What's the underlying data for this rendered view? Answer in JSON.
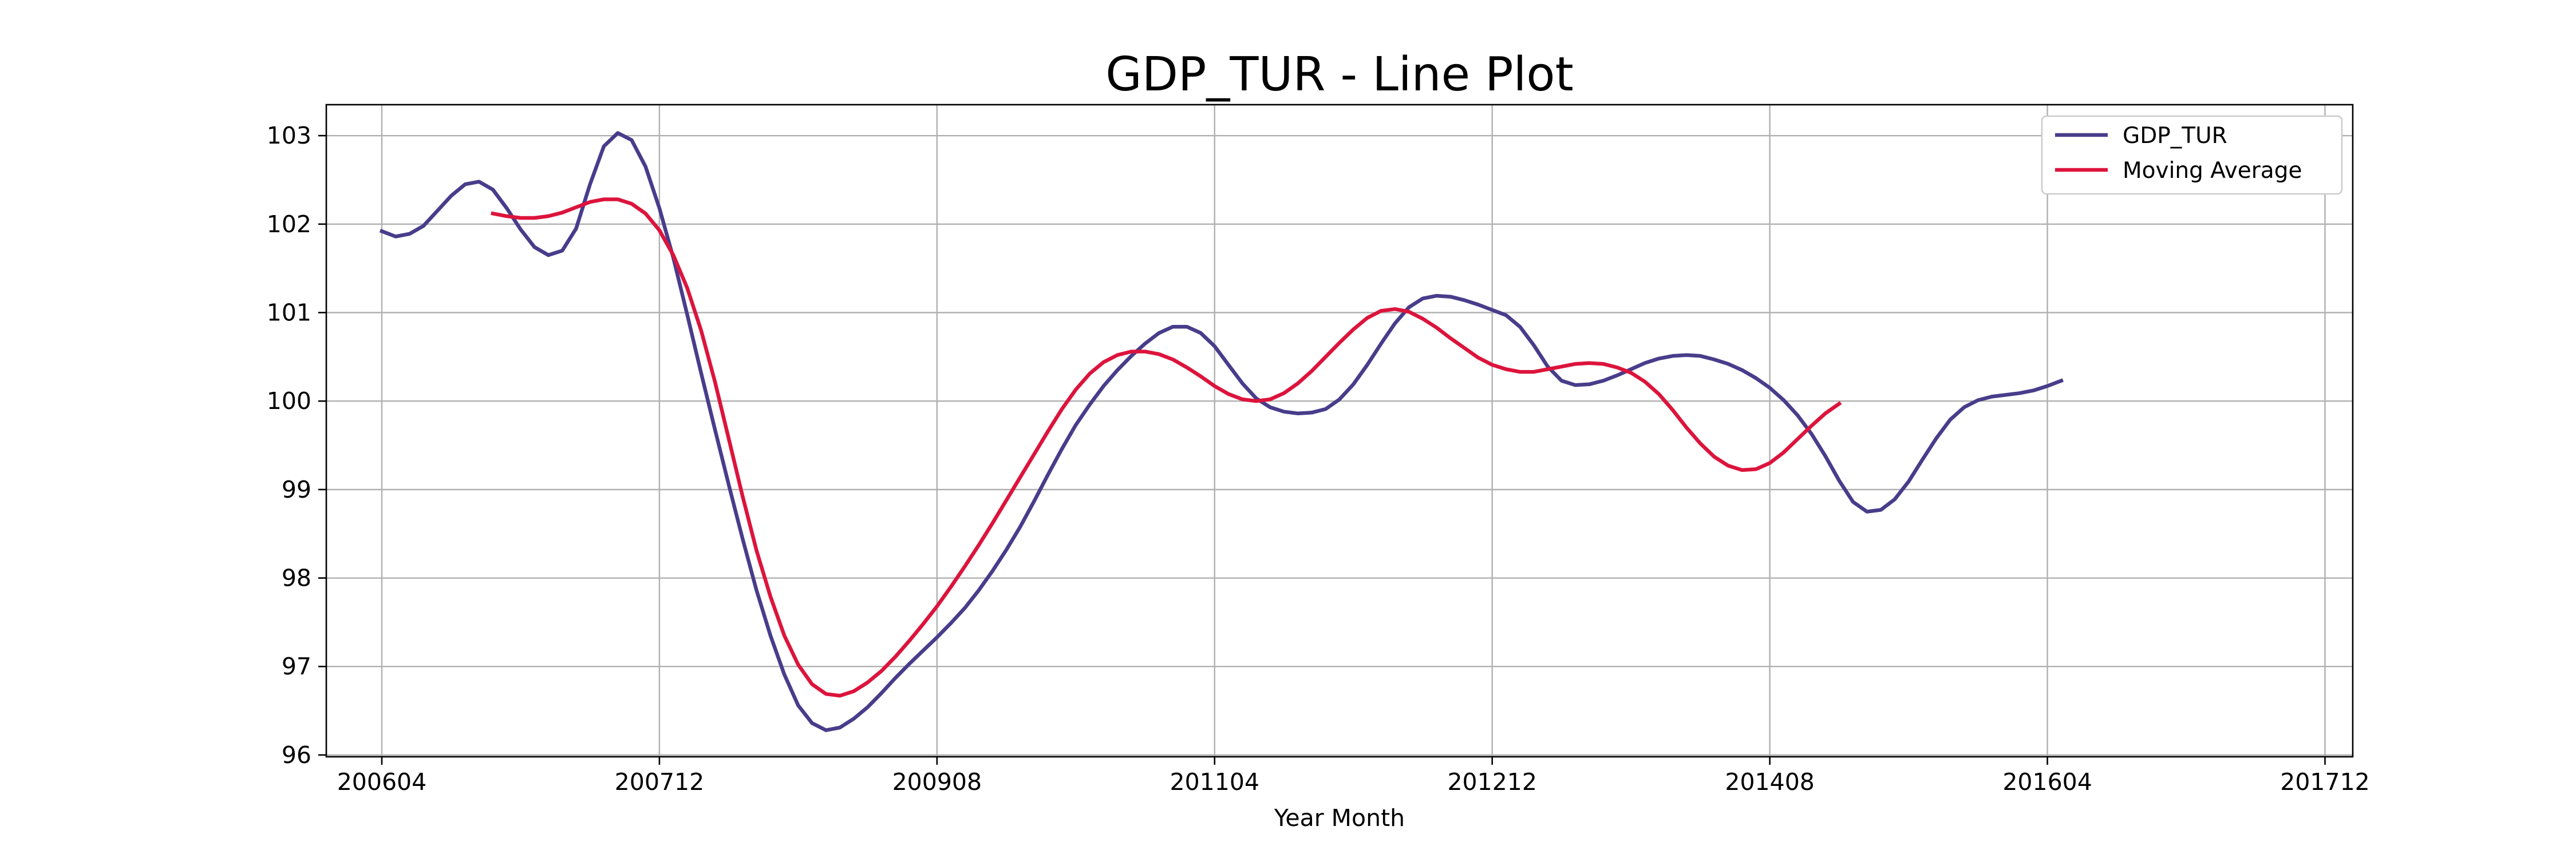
{
  "chart_data": {
    "type": "line",
    "title": "GDP_TUR - Line Plot",
    "xlabel": "Year Month",
    "ylabel": "",
    "xlim": [
      "2005-12",
      "2018-02"
    ],
    "ylim": [
      95.98,
      103.35
    ],
    "x_ticks": [
      "200604",
      "200712",
      "200908",
      "201104",
      "201212",
      "201408",
      "201604",
      "201712"
    ],
    "y_ticks": [
      96,
      97,
      98,
      99,
      100,
      101,
      102,
      103
    ],
    "grid": true,
    "legend_position": "top-right",
    "series": [
      {
        "name": "GDP_TUR",
        "color": "#483d8b",
        "points": [
          [
            "2006-04",
            101.92
          ],
          [
            "2006-05",
            101.86
          ],
          [
            "2006-06",
            101.89
          ],
          [
            "2006-07",
            101.98
          ],
          [
            "2006-08",
            102.15
          ],
          [
            "2006-09",
            102.32
          ],
          [
            "2006-10",
            102.45
          ],
          [
            "2006-11",
            102.48
          ],
          [
            "2006-12",
            102.39
          ],
          [
            "2007-01",
            102.18
          ],
          [
            "2007-02",
            101.94
          ],
          [
            "2007-03",
            101.74
          ],
          [
            "2007-04",
            101.65
          ],
          [
            "2007-05",
            101.7
          ],
          [
            "2007-06",
            101.95
          ],
          [
            "2007-07",
            102.45
          ],
          [
            "2007-08",
            102.88
          ],
          [
            "2007-09",
            103.03
          ],
          [
            "2007-10",
            102.95
          ],
          [
            "2007-11",
            102.65
          ],
          [
            "2007-12",
            102.18
          ],
          [
            "2008-01",
            101.62
          ],
          [
            "2008-02",
            100.98
          ],
          [
            "2008-03",
            100.32
          ],
          [
            "2008-04",
            99.68
          ],
          [
            "2008-05",
            99.05
          ],
          [
            "2008-06",
            98.44
          ],
          [
            "2008-07",
            97.86
          ],
          [
            "2008-08",
            97.35
          ],
          [
            "2008-09",
            96.91
          ],
          [
            "2008-10",
            96.56
          ],
          [
            "2008-11",
            96.36
          ],
          [
            "2008-12",
            96.28
          ],
          [
            "2009-01",
            96.31
          ],
          [
            "2009-02",
            96.41
          ],
          [
            "2009-03",
            96.54
          ],
          [
            "2009-04",
            96.7
          ],
          [
            "2009-05",
            96.87
          ],
          [
            "2009-06",
            97.03
          ],
          [
            "2009-07",
            97.18
          ],
          [
            "2009-08",
            97.33
          ],
          [
            "2009-09",
            97.49
          ],
          [
            "2009-10",
            97.66
          ],
          [
            "2009-11",
            97.86
          ],
          [
            "2009-12",
            98.08
          ],
          [
            "2010-01",
            98.32
          ],
          [
            "2010-02",
            98.58
          ],
          [
            "2010-03",
            98.87
          ],
          [
            "2010-04",
            99.17
          ],
          [
            "2010-05",
            99.46
          ],
          [
            "2010-06",
            99.73
          ],
          [
            "2010-07",
            99.96
          ],
          [
            "2010-08",
            100.17
          ],
          [
            "2010-09",
            100.35
          ],
          [
            "2010-10",
            100.51
          ],
          [
            "2010-11",
            100.65
          ],
          [
            "2010-12",
            100.77
          ],
          [
            "2011-01",
            100.84
          ],
          [
            "2011-02",
            100.84
          ],
          [
            "2011-03",
            100.77
          ],
          [
            "2011-04",
            100.62
          ],
          [
            "2011-05",
            100.41
          ],
          [
            "2011-06",
            100.2
          ],
          [
            "2011-07",
            100.03
          ],
          [
            "2011-08",
            99.93
          ],
          [
            "2011-09",
            99.88
          ],
          [
            "2011-10",
            99.86
          ],
          [
            "2011-11",
            99.87
          ],
          [
            "2011-12",
            99.91
          ],
          [
            "2012-01",
            100.02
          ],
          [
            "2012-02",
            100.19
          ],
          [
            "2012-03",
            100.41
          ],
          [
            "2012-04",
            100.65
          ],
          [
            "2012-05",
            100.88
          ],
          [
            "2012-06",
            101.06
          ],
          [
            "2012-07",
            101.16
          ],
          [
            "2012-08",
            101.19
          ],
          [
            "2012-09",
            101.18
          ],
          [
            "2012-10",
            101.14
          ],
          [
            "2012-11",
            101.09
          ],
          [
            "2012-12",
            101.03
          ],
          [
            "2013-01",
            100.97
          ],
          [
            "2013-02",
            100.84
          ],
          [
            "2013-03",
            100.63
          ],
          [
            "2013-04",
            100.39
          ],
          [
            "2013-05",
            100.23
          ],
          [
            "2013-06",
            100.18
          ],
          [
            "2013-07",
            100.19
          ],
          [
            "2013-08",
            100.23
          ],
          [
            "2013-09",
            100.29
          ],
          [
            "2013-10",
            100.36
          ],
          [
            "2013-11",
            100.43
          ],
          [
            "2013-12",
            100.48
          ],
          [
            "2014-01",
            100.51
          ],
          [
            "2014-02",
            100.52
          ],
          [
            "2014-03",
            100.51
          ],
          [
            "2014-04",
            100.47
          ],
          [
            "2014-05",
            100.42
          ],
          [
            "2014-06",
            100.35
          ],
          [
            "2014-07",
            100.26
          ],
          [
            "2014-08",
            100.15
          ],
          [
            "2014-09",
            100.01
          ],
          [
            "2014-10",
            99.84
          ],
          [
            "2014-11",
            99.63
          ],
          [
            "2014-12",
            99.38
          ],
          [
            "2015-01",
            99.1
          ],
          [
            "2015-02",
            98.86
          ],
          [
            "2015-03",
            98.75
          ],
          [
            "2015-04",
            98.77
          ],
          [
            "2015-05",
            98.89
          ],
          [
            "2015-06",
            99.09
          ],
          [
            "2015-07",
            99.34
          ],
          [
            "2015-08",
            99.58
          ],
          [
            "2015-09",
            99.79
          ],
          [
            "2015-10",
            99.93
          ],
          [
            "2015-11",
            100.01
          ],
          [
            "2015-12",
            100.05
          ],
          [
            "2016-01",
            100.07
          ],
          [
            "2016-02",
            100.09
          ],
          [
            "2016-03",
            100.12
          ],
          [
            "2016-04",
            100.17
          ],
          [
            "2016-05",
            100.23
          ]
        ]
      },
      {
        "name": "Moving Average",
        "color": "#dc143c",
        "points": [
          [
            "2006-12",
            102.12
          ],
          [
            "2007-01",
            102.09
          ],
          [
            "2007-02",
            102.07
          ],
          [
            "2007-03",
            102.07
          ],
          [
            "2007-04",
            102.09
          ],
          [
            "2007-05",
            102.13
          ],
          [
            "2007-06",
            102.19
          ],
          [
            "2007-07",
            102.25
          ],
          [
            "2007-08",
            102.28
          ],
          [
            "2007-09",
            102.28
          ],
          [
            "2007-10",
            102.23
          ],
          [
            "2007-11",
            102.12
          ],
          [
            "2007-12",
            101.93
          ],
          [
            "2008-01",
            101.65
          ],
          [
            "2008-02",
            101.28
          ],
          [
            "2008-03",
            100.8
          ],
          [
            "2008-04",
            100.22
          ],
          [
            "2008-05",
            99.57
          ],
          [
            "2008-06",
            98.92
          ],
          [
            "2008-07",
            98.31
          ],
          [
            "2008-08",
            97.79
          ],
          [
            "2008-09",
            97.35
          ],
          [
            "2008-10",
            97.02
          ],
          [
            "2008-11",
            96.8
          ],
          [
            "2008-12",
            96.69
          ],
          [
            "2009-01",
            96.67
          ],
          [
            "2009-02",
            96.72
          ],
          [
            "2009-03",
            96.82
          ],
          [
            "2009-04",
            96.95
          ],
          [
            "2009-05",
            97.11
          ],
          [
            "2009-06",
            97.29
          ],
          [
            "2009-07",
            97.48
          ],
          [
            "2009-08",
            97.68
          ],
          [
            "2009-09",
            97.9
          ],
          [
            "2009-10",
            98.13
          ],
          [
            "2009-11",
            98.37
          ],
          [
            "2009-12",
            98.62
          ],
          [
            "2010-01",
            98.88
          ],
          [
            "2010-02",
            99.14
          ],
          [
            "2010-03",
            99.4
          ],
          [
            "2010-04",
            99.66
          ],
          [
            "2010-05",
            99.91
          ],
          [
            "2010-06",
            100.13
          ],
          [
            "2010-07",
            100.31
          ],
          [
            "2010-08",
            100.44
          ],
          [
            "2010-09",
            100.52
          ],
          [
            "2010-10",
            100.56
          ],
          [
            "2010-11",
            100.56
          ],
          [
            "2010-12",
            100.53
          ],
          [
            "2011-01",
            100.47
          ],
          [
            "2011-02",
            100.38
          ],
          [
            "2011-03",
            100.28
          ],
          [
            "2011-04",
            100.17
          ],
          [
            "2011-05",
            100.08
          ],
          [
            "2011-06",
            100.02
          ],
          [
            "2011-07",
            100.0
          ],
          [
            "2011-08",
            100.02
          ],
          [
            "2011-09",
            100.09
          ],
          [
            "2011-10",
            100.2
          ],
          [
            "2011-11",
            100.34
          ],
          [
            "2011-12",
            100.5
          ],
          [
            "2012-01",
            100.66
          ],
          [
            "2012-02",
            100.81
          ],
          [
            "2012-03",
            100.94
          ],
          [
            "2012-04",
            101.02
          ],
          [
            "2012-05",
            101.04
          ],
          [
            "2012-06",
            101.01
          ],
          [
            "2012-07",
            100.93
          ],
          [
            "2012-08",
            100.83
          ],
          [
            "2012-09",
            100.71
          ],
          [
            "2012-10",
            100.6
          ],
          [
            "2012-11",
            100.49
          ],
          [
            "2012-12",
            100.41
          ],
          [
            "2013-01",
            100.36
          ],
          [
            "2013-02",
            100.33
          ],
          [
            "2013-03",
            100.33
          ],
          [
            "2013-04",
            100.36
          ],
          [
            "2013-05",
            100.39
          ],
          [
            "2013-06",
            100.42
          ],
          [
            "2013-07",
            100.43
          ],
          [
            "2013-08",
            100.42
          ],
          [
            "2013-09",
            100.38
          ],
          [
            "2013-10",
            100.32
          ],
          [
            "2013-11",
            100.22
          ],
          [
            "2013-12",
            100.08
          ],
          [
            "2014-01",
            99.9
          ],
          [
            "2014-02",
            99.7
          ],
          [
            "2014-03",
            99.52
          ],
          [
            "2014-04",
            99.37
          ],
          [
            "2014-05",
            99.27
          ],
          [
            "2014-06",
            99.22
          ],
          [
            "2014-07",
            99.23
          ],
          [
            "2014-08",
            99.3
          ],
          [
            "2014-09",
            99.42
          ],
          [
            "2014-10",
            99.57
          ],
          [
            "2014-11",
            99.72
          ],
          [
            "2014-12",
            99.86
          ],
          [
            "2015-01",
            99.97
          ]
        ]
      }
    ]
  }
}
